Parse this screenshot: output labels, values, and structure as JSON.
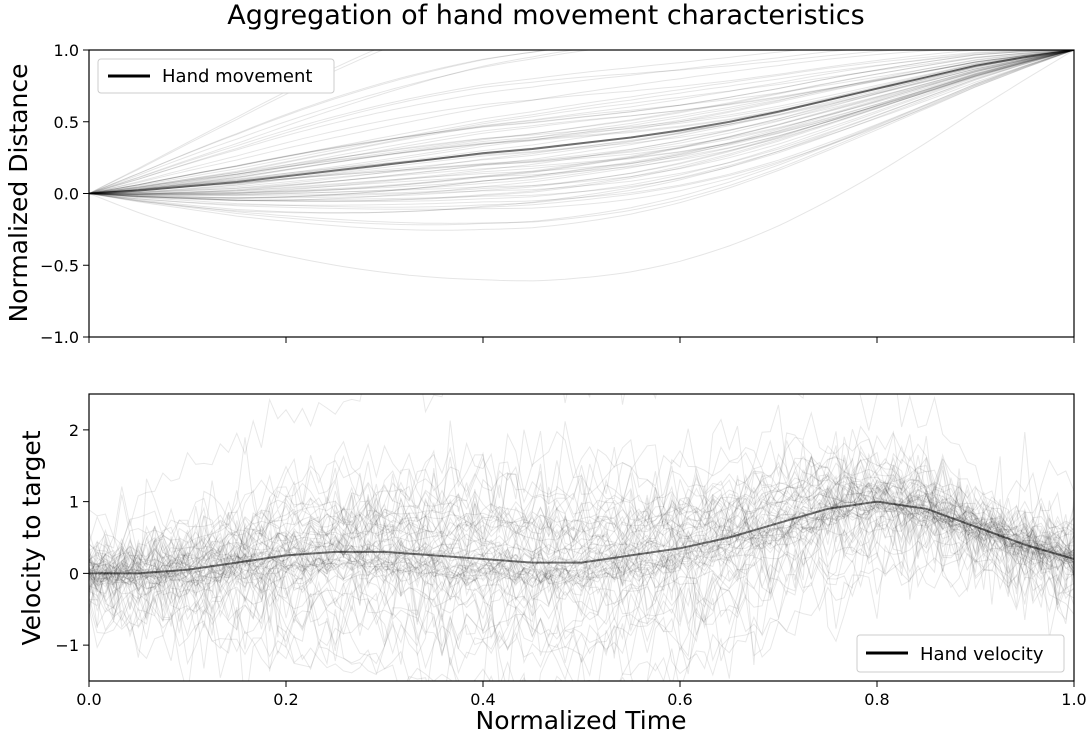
{
  "figure_title": "Aggregation of hand movement characteristics",
  "chart_data": [
    {
      "type": "line",
      "xlabel": "",
      "ylabel": "Normalized Distance",
      "xlim": [
        0.0,
        1.0
      ],
      "ylim": [
        -1.0,
        1.0
      ],
      "yticks": [
        "1.0",
        "0.5",
        "0.0",
        "−0.5",
        "−1.0"
      ],
      "ytick_values": [
        1.0,
        0.5,
        0.0,
        -0.5,
        -1.0
      ],
      "x_ticks_labeled": false,
      "legend": {
        "label": "Hand movement",
        "position": "upper left"
      },
      "line_color": "#000000",
      "grid": false,
      "series": [
        {
          "name": "Hand movement",
          "x": [
            0.0,
            0.05,
            0.1,
            0.15,
            0.2,
            0.25,
            0.3,
            0.35,
            0.4,
            0.45,
            0.5,
            0.55,
            0.6,
            0.65,
            0.7,
            0.75,
            0.8,
            0.85,
            0.9,
            0.95,
            1.0
          ],
          "y": [
            0.0,
            0.02,
            0.05,
            0.08,
            0.12,
            0.16,
            0.2,
            0.24,
            0.28,
            0.31,
            0.35,
            0.39,
            0.44,
            0.5,
            0.57,
            0.65,
            0.73,
            0.81,
            0.89,
            0.95,
            1.0
          ]
        }
      ]
    },
    {
      "type": "line",
      "xlabel": "Normalized Time",
      "ylabel": "Velocity to target",
      "xlim": [
        0.0,
        1.0
      ],
      "ylim": [
        -1.5,
        2.5
      ],
      "xticks": [
        "0.0",
        "0.2",
        "0.4",
        "0.6",
        "0.8",
        "1.0"
      ],
      "xtick_values": [
        0.0,
        0.2,
        0.4,
        0.6,
        0.8,
        1.0
      ],
      "yticks": [
        "2",
        "1",
        "0",
        "−1"
      ],
      "ytick_values": [
        2,
        1,
        0,
        -1
      ],
      "legend": {
        "label": "Hand velocity",
        "position": "lower right"
      },
      "line_color": "#000000",
      "grid": false,
      "series": [
        {
          "name": "Hand velocity",
          "x": [
            0.0,
            0.05,
            0.1,
            0.15,
            0.2,
            0.25,
            0.3,
            0.35,
            0.4,
            0.45,
            0.5,
            0.55,
            0.6,
            0.65,
            0.7,
            0.75,
            0.8,
            0.85,
            0.9,
            0.95,
            1.0
          ],
          "y": [
            0.0,
            0.0,
            0.05,
            0.15,
            0.25,
            0.3,
            0.3,
            0.25,
            0.2,
            0.15,
            0.15,
            0.25,
            0.35,
            0.5,
            0.7,
            0.9,
            1.0,
            0.9,
            0.65,
            0.4,
            0.2
          ]
        }
      ]
    }
  ]
}
